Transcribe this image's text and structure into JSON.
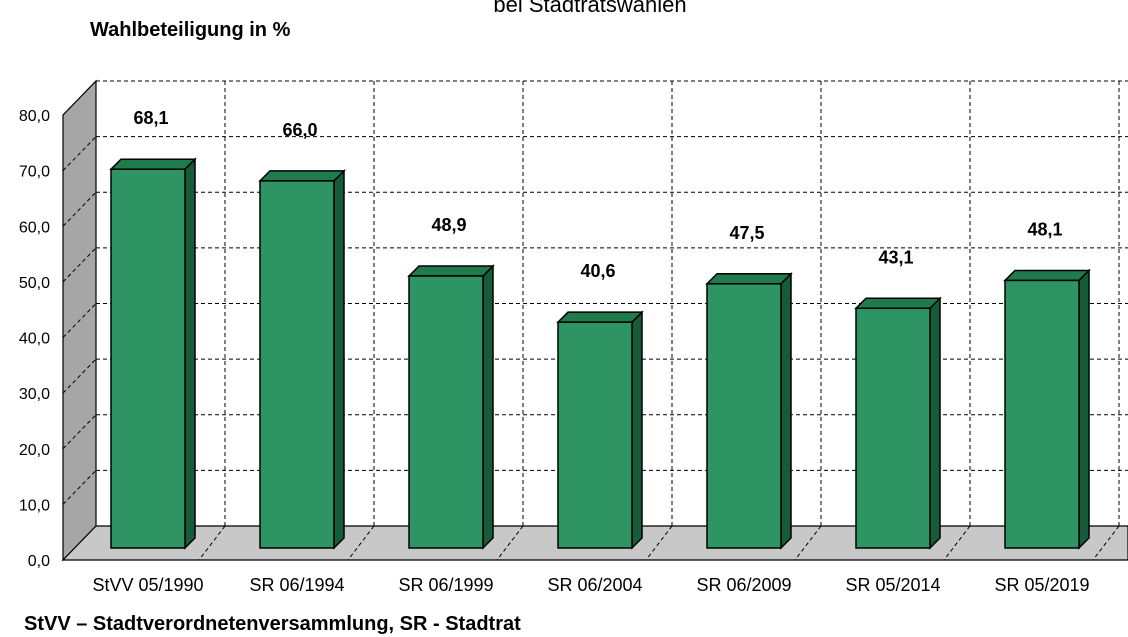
{
  "chart_data": {
    "type": "bar",
    "title": "bei Stadtratswahlen",
    "ylabel": "Wahlbeteiligung in %",
    "xlabel": "",
    "categories": [
      "StVV 05/1990",
      "SR 06/1994",
      "SR 06/1999",
      "SR 06/2004",
      "SR 06/2009",
      "SR 05/2014",
      "SR 05/2019"
    ],
    "values": [
      68.1,
      66.0,
      48.9,
      40.6,
      47.5,
      43.1,
      48.1
    ],
    "value_labels": [
      "68,1",
      "66,0",
      "48,9",
      "40,6",
      "47,5",
      "43,1",
      "48,1"
    ],
    "ylim": [
      0,
      80
    ],
    "yticks": [
      "0,0",
      "10,0",
      "20,0",
      "30,0",
      "40,0",
      "50,0",
      "60,0",
      "70,0",
      "80,0"
    ],
    "grid": true,
    "legend": "none",
    "colors": {
      "bar_front": "#2e9463",
      "bar_top": "#1f7a4c",
      "bar_side": "#175c3a",
      "floor": "#c8c8c8",
      "wall": "#a6a6a6"
    },
    "footnote": "StVV – Stadtverordnetenversammlung, SR - Stadtrat"
  }
}
